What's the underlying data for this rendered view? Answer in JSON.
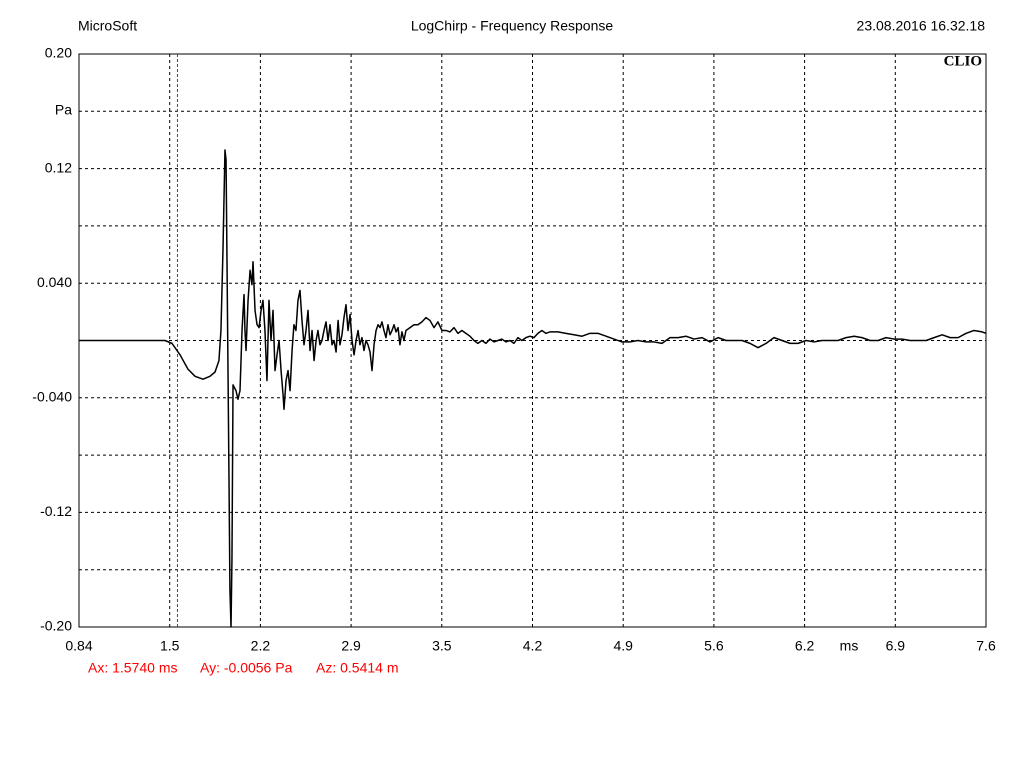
{
  "chart_data": {
    "type": "line",
    "header_left": "MicroSoft",
    "title": "LogChirp - Frequency Response",
    "header_right": "23.08.2016 16.32.18",
    "brand": "CLIO",
    "xlabel": "ms",
    "ylabel": "Pa",
    "color": "#000000",
    "grid": true,
    "xlim": [
      0.84,
      7.6
    ],
    "xticks": [
      0.84,
      {
        "value": 1.516,
        "label": "1.5"
      },
      {
        "value": 2.192,
        "label": "2.2"
      },
      {
        "value": 2.868,
        "label": "2.9"
      },
      {
        "value": 3.544,
        "label": "3.5"
      },
      {
        "value": 4.22,
        "label": "4.2"
      },
      {
        "value": 4.896,
        "label": "4.9"
      },
      {
        "value": 5.572,
        "label": "5.6"
      },
      {
        "value": 6.248,
        "label": "6.2"
      },
      {
        "value": 6.924,
        "label": "6.9"
      },
      7.6
    ],
    "ylim": [
      -0.2,
      0.2
    ],
    "yticks": [
      {
        "value": 0.2,
        "label": "0.20"
      },
      0.12,
      {
        "value": 0.04,
        "label": "0.040"
      },
      {
        "value": -0.04,
        "label": "-0.040"
      },
      -0.12,
      {
        "value": -0.2,
        "label": "-0.20"
      }
    ],
    "ygrid": [
      0.16,
      0.08,
      0,
      -0.08,
      -0.16
    ],
    "cursor": {
      "x": 1.574,
      "color": "#ff0000",
      "labels": [
        "Ax: 1.5740 ms",
        "Ay: -0.0056 Pa",
        "Az: 0.5414 m"
      ]
    },
    "x": [
      0.84,
      1.481,
      1.533,
      1.593,
      1.652,
      1.705,
      1.764,
      1.816,
      1.854,
      1.883,
      1.898,
      1.913,
      1.928,
      1.936,
      1.943,
      1.958,
      1.965,
      1.973,
      1.98,
      1.988,
      2.01,
      2.025,
      2.04,
      2.055,
      2.07,
      2.077,
      2.085,
      2.1,
      2.115,
      2.129,
      2.137,
      2.152,
      2.167,
      2.182,
      2.197,
      2.211,
      2.226,
      2.241,
      2.256,
      2.271,
      2.286,
      2.301,
      2.316,
      2.331,
      2.346,
      2.361,
      2.368,
      2.383,
      2.398,
      2.413,
      2.428,
      2.442,
      2.457,
      2.472,
      2.487,
      2.502,
      2.517,
      2.532,
      2.547,
      2.562,
      2.577,
      2.592,
      2.607,
      2.621,
      2.636,
      2.651,
      2.666,
      2.681,
      2.696,
      2.711,
      2.726,
      2.741,
      2.756,
      2.771,
      2.785,
      2.8,
      2.815,
      2.83,
      2.845,
      2.86,
      2.875,
      2.89,
      2.905,
      2.92,
      2.934,
      2.949,
      2.964,
      2.979,
      2.994,
      3.009,
      3.024,
      3.039,
      3.054,
      3.069,
      3.084,
      3.098,
      3.113,
      3.128,
      3.143,
      3.158,
      3.173,
      3.188,
      3.203,
      3.218,
      3.232,
      3.247,
      3.262,
      3.277,
      3.307,
      3.337,
      3.366,
      3.396,
      3.426,
      3.456,
      3.486,
      3.515,
      3.545,
      3.575,
      3.605,
      3.635,
      3.664,
      3.694,
      3.724,
      3.754,
      3.784,
      3.813,
      3.843,
      3.873,
      3.903,
      3.933,
      3.962,
      3.992,
      4.022,
      4.052,
      4.082,
      4.111,
      4.141,
      4.171,
      4.201,
      4.231,
      4.26,
      4.29,
      4.32,
      4.35,
      4.41,
      4.469,
      4.529,
      4.589,
      4.648,
      4.708,
      4.768,
      4.827,
      4.887,
      4.947,
      5.006,
      5.066,
      5.126,
      5.185,
      5.245,
      5.305,
      5.364,
      5.424,
      5.484,
      5.543,
      5.603,
      5.663,
      5.722,
      5.782,
      5.841,
      5.901,
      5.961,
      6.02,
      6.08,
      6.14,
      6.199,
      6.259,
      6.319,
      6.378,
      6.438,
      6.497,
      6.557,
      6.617,
      6.676,
      6.736,
      6.796,
      6.855,
      6.915,
      6.975,
      7.034,
      7.094,
      7.154,
      7.213,
      7.273,
      7.333,
      7.392,
      7.452,
      7.511,
      7.571,
      7.6
    ],
    "values": [
      0,
      0,
      -0.002,
      -0.01,
      -0.02,
      -0.025,
      -0.027,
      -0.025,
      -0.022,
      -0.014,
      0.007,
      0.063,
      0.133,
      0.126,
      0.056,
      -0.097,
      -0.174,
      -0.2,
      -0.153,
      -0.031,
      -0.035,
      -0.041,
      -0.035,
      0.007,
      0.032,
      0.007,
      -0.007,
      0.028,
      0.049,
      0.039,
      0.055,
      0.021,
      0.011,
      0.009,
      0.021,
      0.028,
      0.007,
      -0.028,
      0.028,
      0,
      0.021,
      -0.021,
      -0.01,
      0,
      -0.021,
      -0.038,
      -0.048,
      -0.028,
      -0.021,
      -0.035,
      -0.007,
      0.011,
      0.007,
      0.028,
      0.035,
      0.014,
      -0.003,
      0.007,
      0.021,
      -0.007,
      0.007,
      -0.014,
      0,
      0.007,
      -0.003,
      0,
      0.007,
      0.013,
      0,
      0.011,
      -0.003,
      0,
      -0.008,
      0.014,
      -0.003,
      0.004,
      0.016,
      0.025,
      0.007,
      0.018,
      0,
      -0.01,
      0,
      0.007,
      -0.003,
      0.002,
      -0.007,
      0,
      -0.003,
      -0.008,
      -0.021,
      -0.003,
      0.007,
      0.011,
      0.009,
      0.013,
      0.007,
      0.002,
      0.011,
      0.004,
      0.007,
      0.011,
      0.006,
      0.009,
      -0.003,
      0.006,
      0,
      0.007,
      0.009,
      0.011,
      0.011,
      0.013,
      0.016,
      0.014,
      0.009,
      0.013,
      0.007,
      0.007,
      0.006,
      0.009,
      0.005,
      0.007,
      0.005,
      0.003,
      0,
      -0.002,
      0,
      -0.002,
      0.001,
      -0.001,
      0,
      0.001,
      -0.001,
      0,
      -0.002,
      0.002,
      0,
      0.002,
      0.003,
      0.002,
      0.005,
      0.007,
      0.005,
      0.006,
      0.006,
      0.005,
      0.004,
      0.003,
      0.005,
      0.005,
      0.003,
      0.001,
      -0.001,
      -0.001,
      0,
      -0.001,
      -0.001,
      -0.002,
      0.002,
      0.002,
      0.003,
      0.001,
      0.002,
      -0.001,
      0.002,
      0,
      0,
      0,
      -0.002,
      -0.005,
      -0.002,
      0.002,
      0,
      -0.002,
      -0.002,
      0,
      -0.001,
      0,
      0,
      0,
      0.002,
      0.003,
      0.002,
      0,
      0,
      0.002,
      0.001,
      0.001,
      0,
      0,
      0,
      0.002,
      0.004,
      0.002,
      0.002,
      0.005,
      0.007,
      0.006,
      0.005
    ]
  }
}
